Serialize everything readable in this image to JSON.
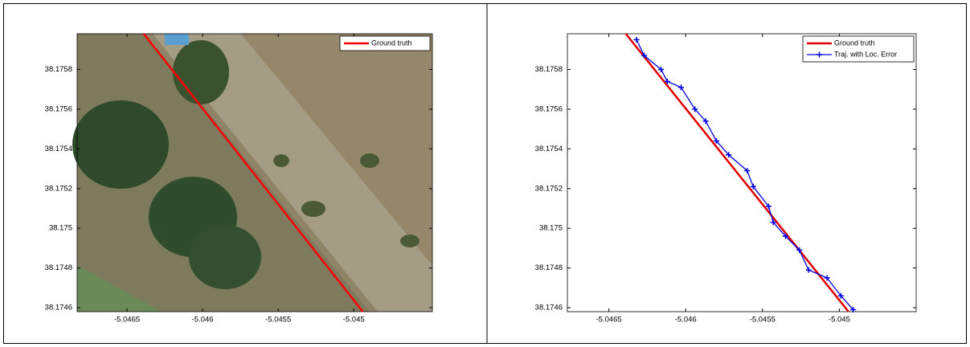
{
  "chart_data": [
    {
      "type": "line",
      "xlim": [
        -5.04683,
        -5.04448
      ],
      "ylim": [
        38.17458,
        38.17598
      ],
      "xticks": [
        -5.0465,
        -5.046,
        -5.0455,
        -5.045
      ],
      "yticks": [
        38.1746,
        38.1748,
        38.175,
        38.1752,
        38.1754,
        38.1756,
        38.1758
      ],
      "legend": "upper right",
      "series": [
        {
          "name": "Ground truth",
          "color": "#ff0000",
          "x": [
            -5.04639,
            -5.04494
          ],
          "values": [
            38.17598,
            38.17458
          ]
        }
      ]
    },
    {
      "type": "line",
      "xlim": [
        -5.04677,
        -5.0445
      ],
      "ylim": [
        38.17458,
        38.17598
      ],
      "xticks": [
        -5.0465,
        -5.046,
        -5.0455,
        -5.045
      ],
      "yticks": [
        38.1746,
        38.1748,
        38.175,
        38.1752,
        38.1754,
        38.1756,
        38.1758
      ],
      "legend": "upper right",
      "series": [
        {
          "name": "Ground truth",
          "color": "#e00000",
          "x": [
            -5.04639,
            -5.04494
          ],
          "values": [
            38.17598,
            38.17458
          ]
        },
        {
          "name": "Traj. with Loc. Error",
          "color": "#0000e0",
          "marker": "+",
          "x": [
            -5.04632,
            -5.04627,
            -5.04616,
            -5.04612,
            -5.04603,
            -5.04594,
            -5.04587,
            -5.0458,
            -5.04572,
            -5.0456,
            -5.04556,
            -5.04546,
            -5.04543,
            -5.04535,
            -5.04526,
            -5.0452,
            -5.04508,
            -5.04499,
            -5.04491
          ],
          "values": [
            38.17595,
            38.17587,
            38.1758,
            38.17574,
            38.17571,
            38.1756,
            38.17554,
            38.17544,
            38.17537,
            38.17529,
            38.17521,
            38.17511,
            38.17503,
            38.17496,
            38.17489,
            38.17479,
            38.17475,
            38.17466,
            38.17459
          ]
        }
      ]
    }
  ]
}
